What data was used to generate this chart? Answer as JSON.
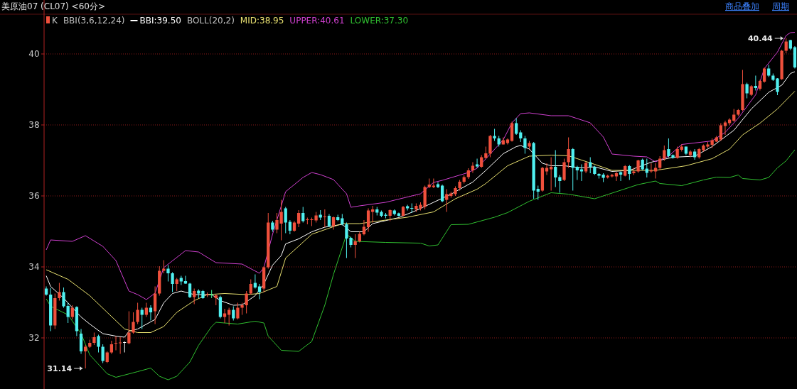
{
  "chart_data": {
    "type": "candlestick",
    "title": "美原油07 (CL07) <60分>",
    "annotations": [
      "BBI(3,6,12,24)",
      "BOLL(20,2)",
      "31.14",
      "40.44",
      "商品叠加",
      "周期"
    ],
    "categories": [
      null,
      null,
      null,
      null,
      null,
      null,
      null,
      null,
      null,
      null,
      null,
      null,
      null,
      null,
      null,
      null,
      null,
      null,
      null,
      null,
      null,
      null,
      null,
      null,
      null,
      null,
      null,
      null,
      null,
      null,
      null,
      null,
      null,
      null,
      null,
      null,
      null,
      null,
      null,
      null,
      null,
      null,
      null,
      null,
      null,
      null,
      null,
      null,
      null,
      null,
      null,
      null,
      null,
      null,
      null,
      null,
      null,
      null,
      null,
      null,
      null,
      null,
      null,
      null,
      null,
      null,
      null,
      null,
      null,
      null,
      null,
      null,
      null,
      null,
      null,
      null,
      null,
      null,
      null,
      null,
      null,
      null,
      null,
      null,
      null,
      null,
      null,
      null,
      null,
      null,
      null,
      null,
      null,
      null,
      null,
      null,
      null,
      null,
      null,
      null,
      null,
      null,
      null,
      null,
      null,
      null,
      null,
      null,
      null,
      null,
      null,
      null,
      null,
      null,
      null,
      null,
      null,
      null,
      null,
      null,
      null,
      null,
      null,
      null,
      null,
      null,
      null,
      null,
      null,
      null,
      null,
      null,
      null,
      null,
      null,
      null,
      null,
      null,
      null,
      null,
      null,
      null,
      null,
      null,
      null,
      null,
      null,
      null,
      null,
      null,
      null,
      null,
      null,
      null,
      null,
      null,
      null,
      null,
      null,
      null,
      null,
      null,
      null,
      null,
      null,
      null,
      null,
      null,
      null,
      null,
      null,
      null,
      null
    ],
    "ylim": [
      30.56,
      41.12
    ],
    "yticks": [
      32,
      34,
      36,
      38,
      40
    ],
    "tick_labels": "y",
    "grid": "y",
    "legend": "top left",
    "series": [
      {
        "type": "candlestick",
        "name": "K",
        "ohlc": [
          [
            33.39,
            33.45,
            33.19,
            33.22
          ],
          [
            33.22,
            33.4,
            32.19,
            32.35
          ],
          [
            32.35,
            33.25,
            32.25,
            33.12
          ],
          [
            33.12,
            33.55,
            33.05,
            33.29
          ],
          [
            33.29,
            33.42,
            32.85,
            32.89
          ],
          [
            32.9,
            32.99,
            32.42,
            32.59
          ],
          [
            32.59,
            32.92,
            32.52,
            32.85
          ],
          [
            32.87,
            32.89,
            32.05,
            32.19
          ],
          [
            32.12,
            32.25,
            31.55,
            31.62
          ],
          [
            31.62,
            31.8,
            31.14,
            31.75
          ],
          [
            31.75,
            31.95,
            31.72,
            31.86
          ],
          [
            31.86,
            32.15,
            31.8,
            32.02
          ],
          [
            32.05,
            32.09,
            31.59,
            31.75
          ],
          [
            31.75,
            31.82,
            31.29,
            31.35
          ],
          [
            31.32,
            31.62,
            31.29,
            31.59
          ],
          [
            31.59,
            31.92,
            31.55,
            31.82
          ],
          [
            31.84,
            32.05,
            31.65,
            31.85
          ],
          [
            31.85,
            32.02,
            31.55,
            31.87
          ],
          [
            31.87,
            31.9,
            31.59,
            31.87
          ],
          [
            31.85,
            32.75,
            31.82,
            32.15
          ],
          [
            32.15,
            32.72,
            32.12,
            32.45
          ],
          [
            32.45,
            32.99,
            32.39,
            32.79
          ],
          [
            32.79,
            32.85,
            32.25,
            32.65
          ],
          [
            32.65,
            32.99,
            32.59,
            32.85
          ],
          [
            32.85,
            32.92,
            32.49,
            32.72
          ],
          [
            32.75,
            33.45,
            32.39,
            33.25
          ],
          [
            33.25,
            34.02,
            33.19,
            33.89
          ],
          [
            33.89,
            34.19,
            33.82,
            33.95
          ],
          [
            33.95,
            34.05,
            33.59,
            33.82
          ],
          [
            33.82,
            33.85,
            33.29,
            33.52
          ],
          [
            33.52,
            33.69,
            33.32,
            33.65
          ],
          [
            33.69,
            33.75,
            33.49,
            33.59
          ],
          [
            33.6,
            33.75,
            33.52,
            33.53
          ],
          [
            33.53,
            33.55,
            33.12,
            33.15
          ],
          [
            33.15,
            33.39,
            32.95,
            33.32
          ],
          [
            33.33,
            33.37,
            33.12,
            33.25
          ],
          [
            33.32,
            33.35,
            33.1,
            33.12
          ],
          [
            33.2,
            33.28,
            33.15,
            33.22
          ],
          [
            33.22,
            33.35,
            33.12,
            33.2
          ],
          [
            33.12,
            33.22,
            32.92,
            33.2
          ],
          [
            33.15,
            33.19,
            32.55,
            32.59
          ],
          [
            32.59,
            32.82,
            32.42,
            32.69
          ],
          [
            32.65,
            32.85,
            32.35,
            32.79
          ],
          [
            32.79,
            32.89,
            32.49,
            32.55
          ],
          [
            32.55,
            32.99,
            32.52,
            32.85
          ],
          [
            32.85,
            32.99,
            32.65,
            32.92
          ],
          [
            32.92,
            33.32,
            32.69,
            33.25
          ],
          [
            33.25,
            33.65,
            33.22,
            33.52
          ],
          [
            33.55,
            33.79,
            33.39,
            33.42
          ],
          [
            33.45,
            33.52,
            33.09,
            33.29
          ],
          [
            33.39,
            34.02,
            33.29,
            33.99
          ],
          [
            33.99,
            35.52,
            33.95,
            35.25
          ],
          [
            35.25,
            35.3,
            34.99,
            35.05
          ],
          [
            35.05,
            35.52,
            34.95,
            35.32
          ],
          [
            35.22,
            35.89,
            34.75,
            35.55
          ],
          [
            35.65,
            35.69,
            34.95,
            35.25
          ],
          [
            35.27,
            35.32,
            34.92,
            35.02
          ],
          [
            35.02,
            35.29,
            34.99,
            35.25
          ],
          [
            35.22,
            35.6,
            35.12,
            35.52
          ],
          [
            35.52,
            35.69,
            35.25,
            35.29
          ],
          [
            35.31,
            35.39,
            35.2,
            35.33
          ],
          [
            35.31,
            35.39,
            35.15,
            35.33
          ],
          [
            35.31,
            35.55,
            35.25,
            35.45
          ],
          [
            35.47,
            35.6,
            35.32,
            35.39
          ],
          [
            35.4,
            35.62,
            35.12,
            35.42
          ],
          [
            35.44,
            35.49,
            35.12,
            35.15
          ],
          [
            35.15,
            35.42,
            35.05,
            35.4
          ],
          [
            35.4,
            35.47,
            35.29,
            35.32
          ],
          [
            35.37,
            35.49,
            35.17,
            35.2
          ],
          [
            35.2,
            35.25,
            34.25,
            34.8
          ],
          [
            34.82,
            34.85,
            34.55,
            34.62
          ],
          [
            34.62,
            34.92,
            34.25,
            34.72
          ],
          [
            34.72,
            34.99,
            34.69,
            34.93
          ],
          [
            34.92,
            35.32,
            34.89,
            35.13
          ],
          [
            35.12,
            35.65,
            34.99,
            35.59
          ],
          [
            35.55,
            35.72,
            35.25,
            35.62
          ],
          [
            35.62,
            35.69,
            35.45,
            35.53
          ],
          [
            35.55,
            35.59,
            35.4,
            35.44
          ],
          [
            35.47,
            35.52,
            35.37,
            35.44
          ],
          [
            35.44,
            35.62,
            35.29,
            35.6
          ],
          [
            35.59,
            35.62,
            35.45,
            35.49
          ],
          [
            35.51,
            35.53,
            35.42,
            35.44
          ],
          [
            35.44,
            35.72,
            35.42,
            35.69
          ],
          [
            35.71,
            35.75,
            35.59,
            35.65
          ],
          [
            35.65,
            35.79,
            35.52,
            35.64
          ],
          [
            35.62,
            35.79,
            35.55,
            35.72
          ],
          [
            35.65,
            35.82,
            35.59,
            35.75
          ],
          [
            35.69,
            36.29,
            35.62,
            36.25
          ],
          [
            36.25,
            36.49,
            36.22,
            36.32
          ],
          [
            36.25,
            36.49,
            36.22,
            36.29
          ],
          [
            36.33,
            36.39,
            36.22,
            36.25
          ],
          [
            36.29,
            36.32,
            35.82,
            35.85
          ],
          [
            35.89,
            36.19,
            35.55,
            36.05
          ],
          [
            36.0,
            36.12,
            35.95,
            36.07
          ],
          [
            36.05,
            36.27,
            36.0,
            36.22
          ],
          [
            36.22,
            36.45,
            36.15,
            36.4
          ],
          [
            36.4,
            36.58,
            36.35,
            36.53
          ],
          [
            36.53,
            36.78,
            36.48,
            36.72
          ],
          [
            36.72,
            36.95,
            36.65,
            36.85
          ],
          [
            36.89,
            37.05,
            36.79,
            36.83
          ],
          [
            36.82,
            37.15,
            36.79,
            37.09
          ],
          [
            37.07,
            37.39,
            37.05,
            37.2
          ],
          [
            37.19,
            37.72,
            37.09,
            37.69
          ],
          [
            37.69,
            37.89,
            37.55,
            37.62
          ],
          [
            37.62,
            37.69,
            37.39,
            37.45
          ],
          [
            37.45,
            37.65,
            37.45,
            37.57
          ],
          [
            37.49,
            37.62,
            37.45,
            37.59
          ],
          [
            37.55,
            38.09,
            37.53,
            38.05
          ],
          [
            38.05,
            38.19,
            37.72,
            37.75
          ],
          [
            37.79,
            37.85,
            37.52,
            37.62
          ],
          [
            37.62,
            37.69,
            37.19,
            37.35
          ],
          [
            37.39,
            37.55,
            37.32,
            37.49
          ],
          [
            37.49,
            37.52,
            35.92,
            36.15
          ],
          [
            36.2,
            36.29,
            35.89,
            36.12
          ],
          [
            36.15,
            36.82,
            36.12,
            36.79
          ],
          [
            36.69,
            36.92,
            36.59,
            36.79
          ],
          [
            36.75,
            37.09,
            36.15,
            36.82
          ],
          [
            36.82,
            37.29,
            36.25,
            36.52
          ],
          [
            36.53,
            36.59,
            36.09,
            36.42
          ],
          [
            36.45,
            37.05,
            36.42,
            36.95
          ],
          [
            36.95,
            37.65,
            36.79,
            37.32
          ],
          [
            37.32,
            37.35,
            36.15,
            36.79
          ],
          [
            36.82,
            36.85,
            36.45,
            36.72
          ],
          [
            36.75,
            36.89,
            36.42,
            36.69
          ],
          [
            36.69,
            36.97,
            36.64,
            36.93
          ],
          [
            36.95,
            37.09,
            36.64,
            36.82
          ],
          [
            36.82,
            36.85,
            36.59,
            36.62
          ],
          [
            36.62,
            36.64,
            36.49,
            36.57
          ],
          [
            36.6,
            36.64,
            36.39,
            36.51
          ],
          [
            36.52,
            36.6,
            36.49,
            36.57
          ],
          [
            36.55,
            36.62,
            36.52,
            36.59
          ],
          [
            36.55,
            36.69,
            36.42,
            36.64
          ],
          [
            36.67,
            36.69,
            36.42,
            36.6
          ],
          [
            36.57,
            36.87,
            36.55,
            36.84
          ],
          [
            36.84,
            36.87,
            36.45,
            36.62
          ],
          [
            36.64,
            36.79,
            36.59,
            36.69
          ],
          [
            36.69,
            37.02,
            36.65,
            37.0
          ],
          [
            37.02,
            37.05,
            36.72,
            36.75
          ],
          [
            36.77,
            37.05,
            36.52,
            36.65
          ],
          [
            36.69,
            36.92,
            36.65,
            36.72
          ],
          [
            36.69,
            36.92,
            36.49,
            36.79
          ],
          [
            36.79,
            37.12,
            36.72,
            37.05
          ],
          [
            37.05,
            37.42,
            36.99,
            37.29
          ],
          [
            37.32,
            37.62,
            37.09,
            37.12
          ],
          [
            37.15,
            37.17,
            37.05,
            37.07
          ],
          [
            37.07,
            37.39,
            37.05,
            37.32
          ],
          [
            37.3,
            37.45,
            37.25,
            37.39
          ],
          [
            37.39,
            37.39,
            37.15,
            37.19
          ],
          [
            37.15,
            37.29,
            37.09,
            37.25
          ],
          [
            37.25,
            37.32,
            37.02,
            37.09
          ],
          [
            37.09,
            37.35,
            37.05,
            37.32
          ],
          [
            37.29,
            37.45,
            37.25,
            37.42
          ],
          [
            37.39,
            37.52,
            37.35,
            37.45
          ],
          [
            37.44,
            37.62,
            37.35,
            37.57
          ],
          [
            37.53,
            37.69,
            37.52,
            37.65
          ],
          [
            37.59,
            38.05,
            37.55,
            37.99
          ],
          [
            37.97,
            38.12,
            37.72,
            38.07
          ],
          [
            38.05,
            38.19,
            37.99,
            38.15
          ],
          [
            38.12,
            38.45,
            38.09,
            38.29
          ],
          [
            38.29,
            38.45,
            38.25,
            38.42
          ],
          [
            38.42,
            39.55,
            38.39,
            39.15
          ],
          [
            39.15,
            39.19,
            38.75,
            38.89
          ],
          [
            38.85,
            39.12,
            38.82,
            39.09
          ],
          [
            39.1,
            39.39,
            38.97,
            39.04
          ],
          [
            39.02,
            39.27,
            38.97,
            39.24
          ],
          [
            39.22,
            39.62,
            39.19,
            39.59
          ],
          [
            39.59,
            39.69,
            39.35,
            39.39
          ],
          [
            39.39,
            39.45,
            39.24,
            39.27
          ],
          [
            39.31,
            39.32,
            38.84,
            38.93
          ],
          [
            39.29,
            40.12,
            39.27,
            40.09
          ],
          [
            40.09,
            40.44,
            40.02,
            40.35
          ],
          [
            40.39,
            40.4,
            40.11,
            40.15
          ],
          [
            40.19,
            40.22,
            39.59,
            39.62
          ]
        ],
        "colors": [
          "#50f0f0",
          "#50f0f0",
          "#f0503c",
          "#f0503c",
          "#50f0f0",
          "#50f0f0",
          "#f0503c",
          "#50f0f0",
          "#50f0f0",
          "#f0503c",
          "#f0503c",
          "#f0503c",
          "#50f0f0",
          "#50f0f0",
          "#f0503c",
          "#f0503c",
          "#f0503c",
          "#f0503c",
          "#ffffff",
          "#f0503c",
          "#f0503c",
          "#f0503c",
          "#50f0f0",
          "#f0503c",
          "#50f0f0",
          "#f0503c",
          "#f0503c",
          "#f0503c",
          "#50f0f0",
          "#50f0f0",
          "#f0503c",
          "#50f0f0",
          "#50f0f0",
          "#50f0f0",
          "#f0503c",
          "#50f0f0",
          "#50f0f0",
          "#f0503c",
          "#40f090",
          "#f0503c",
          "#50f0f0",
          "#f0503c",
          "#f0503c",
          "#50f0f0",
          "#f0503c",
          "#f0503c",
          "#f0503c",
          "#f0503c",
          "#50f0f0",
          "#50f0f0",
          "#f0503c",
          "#f0503c",
          "#50f0f0",
          "#f0503c",
          "#f0503c",
          "#50f0f0",
          "#50f0f0",
          "#f0503c",
          "#f0503c",
          "#50f0f0",
          "#f0503c",
          "#f0503c",
          "#f0503c",
          "#50f0f0",
          "#f0503c",
          "#50f0f0",
          "#f0503c",
          "#50f0f0",
          "#50f0f0",
          "#50f0f0",
          "#50f0f0",
          "#f0503c",
          "#f0503c",
          "#f0503c",
          "#f0503c",
          "#f0503c",
          "#50f0f0",
          "#50f0f0",
          "#50f0f0",
          "#f0503c",
          "#50f0f0",
          "#50f0f0",
          "#f0503c",
          "#50f0f0",
          "#50f0f0",
          "#f0503c",
          "#f0503c",
          "#f0503c",
          "#f0503c",
          "#f0503c",
          "#50f0f0",
          "#50f0f0",
          "#f0503c",
          "#f0503c",
          "#f0503c",
          "#f0503c",
          "#f0503c",
          "#f0503c",
          "#f0503c",
          "#50f0f0",
          "#f0503c",
          "#f0503c",
          "#f0503c",
          "#50f0f0",
          "#50f0f0",
          "#f0503c",
          "#f0503c",
          "#f0503c",
          "#50f0f0",
          "#50f0f0",
          "#50f0f0",
          "#f0503c",
          "#50f0f0",
          "#50f0f0",
          "#f0503c",
          "#f0503c",
          "#f0503c",
          "#50f0f0",
          "#50f0f0",
          "#f0503c",
          "#f0503c",
          "#50f0f0",
          "#50f0f0",
          "#50f0f0",
          "#f0503c",
          "#50f0f0",
          "#50f0f0",
          "#50f0f0",
          "#50f0f0",
          "#f0503c",
          "#f0503c",
          "#f0503c",
          "#50f0f0",
          "#f0503c",
          "#50f0f0",
          "#f0503c",
          "#f0503c",
          "#50f0f0",
          "#50f0f0",
          "#f0503c",
          "#f0503c",
          "#f0503c",
          "#f0503c",
          "#50f0f0",
          "#50f0f0",
          "#f0503c",
          "#f0503c",
          "#50f0f0",
          "#f0503c",
          "#50f0f0",
          "#f0503c",
          "#f0503c",
          "#f0503c",
          "#f0503c",
          "#f0503c",
          "#f0503c",
          "#f0503c",
          "#f0503c",
          "#f0503c",
          "#f0503c",
          "#f0503c",
          "#50f0f0",
          "#f0503c",
          "#50f0f0",
          "#f0503c",
          "#f0503c",
          "#50f0f0",
          "#50f0f0",
          "#50f0f0",
          "#f0503c",
          "#f0503c",
          "#50f0f0",
          "#50f0f0"
        ]
      },
      {
        "type": "line",
        "name": "BBI:39.50",
        "color": "#ffffff",
        "values": [
          33.75,
          33.45,
          null,
          null,
          33.12,
          null,
          32.85,
          null,
          32.59,
          null,
          32.39,
          null,
          null,
          32.12,
          null,
          null,
          32.05,
          null,
          32.02,
          32.19,
          null,
          32.25,
          null,
          null,
          null,
          32.52,
          null,
          32.99,
          null,
          33.25,
          null,
          33.32,
          null,
          null,
          33.22,
          null,
          null,
          null,
          33.22,
          null,
          33.05,
          null,
          null,
          32.92,
          null,
          32.93,
          null,
          null,
          33.19,
          null,
          33.52,
          null,
          34.05,
          null,
          34.32,
          34.65,
          null,
          null,
          34.79,
          null,
          null,
          34.99,
          null,
          null,
          35.12,
          null,
          null,
          null,
          35.2,
          null,
          34.99,
          null,
          null,
          34.99,
          null,
          35.22,
          null,
          null,
          null,
          null,
          null,
          35.39,
          null,
          null,
          null,
          35.59,
          null,
          null,
          null,
          35.82,
          null,
          null,
          null,
          36.05,
          null,
          null,
          null,
          null,
          36.39,
          null,
          null,
          36.72,
          null,
          null,
          null,
          37.19,
          null,
          null,
          37.39,
          37.42,
          null,
          37.32,
          null,
          null,
          36.92,
          null,
          36.85,
          null,
          null,
          36.85,
          null,
          null,
          null,
          36.79,
          null,
          null,
          36.82,
          null,
          null,
          null,
          36.69,
          null,
          null,
          null,
          36.72,
          null,
          null,
          null,
          null,
          36.95,
          null,
          null,
          null,
          null,
          37.09,
          null,
          null,
          null,
          null,
          37.12,
          null,
          null,
          null,
          37.39,
          null,
          null,
          null,
          null,
          37.85,
          null,
          null,
          null,
          38.45,
          null,
          null,
          null,
          38.92,
          null,
          null,
          39.12,
          null,
          39.45,
          39.5
        ]
      },
      {
        "type": "line",
        "name": "MID:38.95",
        "color": "#e8e070",
        "values": [
          33.92,
          null,
          null,
          null,
          null,
          33.65,
          null,
          null,
          null,
          null,
          33.19,
          null,
          null,
          null,
          32.72,
          null,
          null,
          null,
          32.25,
          null,
          null,
          32.15,
          null,
          null,
          32.15,
          null,
          null,
          32.32,
          null,
          null,
          32.72,
          null,
          null,
          null,
          33.05,
          null,
          null,
          33.22,
          null,
          null,
          null,
          33.25,
          null,
          null,
          null,
          null,
          33.22,
          null,
          null,
          33.25,
          null,
          null,
          null,
          33.45,
          null,
          34.25,
          null,
          null,
          null,
          null,
          null,
          34.92,
          null,
          null,
          null,
          null,
          null,
          null,
          35.22,
          null,
          null,
          null,
          35.22,
          null,
          null,
          null,
          null,
          null,
          35.32,
          null,
          null,
          null,
          null,
          35.4,
          null,
          null,
          null,
          null,
          null,
          35.55,
          null,
          null,
          null,
          null,
          35.92,
          null,
          null,
          null,
          null,
          36.19,
          null,
          36.35,
          null,
          null,
          null,
          null,
          36.85,
          null,
          null,
          null,
          null,
          37.12,
          null,
          null,
          null,
          null,
          37.15,
          null,
          null,
          null,
          37.13,
          null,
          null,
          null,
          null,
          null,
          36.89,
          null,
          null,
          null,
          36.72,
          null,
          null,
          null,
          null,
          36.72,
          null,
          null,
          null,
          null,
          36.72,
          null,
          null,
          null,
          null,
          null,
          null,
          36.85,
          null,
          null,
          null,
          null,
          null,
          37.05,
          null,
          null,
          null,
          37.32,
          null,
          null,
          37.72,
          null,
          null,
          null,
          38.05,
          null,
          null,
          null,
          38.45,
          null,
          null,
          null,
          38.95
        ]
      },
      {
        "type": "line",
        "name": "UPPER:40.61",
        "color": "#d040d0",
        "values": [
          34.48,
          34.76,
          null,
          null,
          null,
          null,
          34.72,
          null,
          null,
          34.88,
          null,
          null,
          null,
          34.58,
          null,
          null,
          34.18,
          null,
          null,
          33.32,
          null,
          33.22,
          null,
          33.08,
          null,
          33.26,
          null,
          33.98,
          null,
          null,
          null,
          null,
          34.46,
          null,
          null,
          34.42,
          null,
          null,
          null,
          34.12,
          null,
          null,
          null,
          null,
          null,
          34.08,
          null,
          null,
          null,
          33.82,
          33.98,
          null,
          34.92,
          null,
          null,
          36.12,
          null,
          null,
          null,
          36.52,
          null,
          36.66,
          null,
          36.6,
          null,
          null,
          36.46,
          null,
          null,
          36.06,
          35.68,
          null,
          35.72,
          null,
          null,
          null,
          null,
          null,
          35.82,
          null,
          null,
          null,
          null,
          null,
          null,
          null,
          36.06,
          null,
          null,
          36.38,
          null,
          36.44,
          null,
          null,
          null,
          null,
          null,
          36.66,
          null,
          36.78,
          null,
          null,
          null,
          null,
          null,
          37.58,
          null,
          38.06,
          null,
          38.32,
          null,
          38.34,
          null,
          null,
          null,
          null,
          38.26,
          null,
          null,
          null,
          38.26,
          null,
          null,
          null,
          null,
          38.06,
          null,
          null,
          37.66,
          null,
          37.18,
          null,
          null,
          null,
          null,
          37.12,
          null,
          null,
          37.1,
          null,
          36.96,
          null,
          null,
          37.12,
          null,
          null,
          37.45,
          null,
          null,
          null,
          null,
          null,
          null,
          37.55,
          null,
          null,
          37.79,
          null,
          null,
          38.19,
          null,
          null,
          null,
          38.85,
          null,
          39.59,
          null,
          null,
          40.05,
          null,
          40.52,
          40.6,
          40.61
        ]
      },
      {
        "type": "line",
        "name": "LOWER:37.30",
        "color": "#30c030",
        "values": [
          33.1,
          32.89,
          null,
          null,
          null,
          32.65,
          null,
          null,
          32.12,
          null,
          31.52,
          null,
          null,
          null,
          30.99,
          null,
          30.89,
          null,
          null,
          null,
          null,
          31.05,
          null,
          null,
          31.15,
          null,
          30.92,
          null,
          30.82,
          null,
          30.92,
          null,
          null,
          31.32,
          null,
          31.79,
          null,
          null,
          32.32,
          32.44,
          null,
          null,
          null,
          null,
          32.39,
          null,
          null,
          null,
          32.47,
          null,
          32.42,
          32.05,
          null,
          null,
          31.65,
          null,
          null,
          null,
          31.62,
          null,
          null,
          31.9,
          null,
          null,
          32.92,
          null,
          33.79,
          null,
          null,
          34.92,
          null,
          34.72,
          null,
          null,
          null,
          null,
          null,
          null,
          34.69,
          null,
          null,
          null,
          null,
          null,
          null,
          null,
          34.67,
          null,
          34.59,
          null,
          34.62,
          null,
          null,
          35.19,
          null,
          null,
          null,
          35.2,
          null,
          null,
          null,
          null,
          null,
          35.4,
          null,
          null,
          35.53,
          null,
          null,
          null,
          null,
          35.85,
          null,
          null,
          null,
          null,
          36.09,
          null,
          null,
          null,
          36.05,
          null,
          null,
          null,
          null,
          null,
          35.92,
          null,
          null,
          null,
          null,
          36.12,
          null,
          null,
          null,
          null,
          36.32,
          null,
          null,
          null,
          36.42,
          36.35,
          null,
          null,
          null,
          null,
          36.29,
          null,
          null,
          null,
          null,
          36.45,
          null,
          null,
          36.53,
          null,
          null,
          36.52,
          null,
          36.59,
          36.49,
          null,
          null,
          null,
          36.45,
          null,
          36.52,
          null,
          36.79,
          null,
          36.99,
          null,
          37.3
        ]
      }
    ]
  }
}
